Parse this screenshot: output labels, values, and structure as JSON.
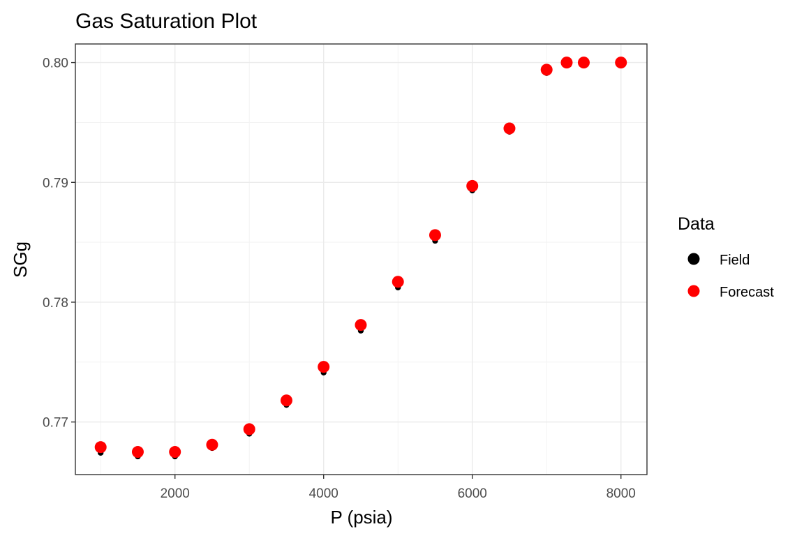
{
  "chart_data": {
    "type": "scatter",
    "title": "Gas Saturation Plot",
    "xlabel": "P (psia)",
    "ylabel": "SGg",
    "xlim": [
      660,
      8350
    ],
    "ylim": [
      0.76561,
      0.80155
    ],
    "x_ticks": [
      2000,
      4000,
      6000,
      8000
    ],
    "x_tick_labels": [
      "2000",
      "4000",
      "6000",
      "8000"
    ],
    "y_ticks": [
      0.77,
      0.78,
      0.79,
      0.8
    ],
    "y_tick_labels": [
      "0.77",
      "0.78",
      "0.79",
      "0.80"
    ],
    "grid": true,
    "legend": {
      "title": "Data",
      "position": "right"
    },
    "series": [
      {
        "name": "Forecast",
        "color": "#ff0000",
        "x": [
          1000,
          1500,
          2000,
          2500,
          3000,
          3500,
          4000,
          4500,
          5000,
          5500,
          6000,
          6500,
          7000,
          7270,
          7500,
          8000
        ],
        "y": [
          0.7679,
          0.7675,
          0.7675,
          0.7681,
          0.7694,
          0.7718,
          0.7746,
          0.7781,
          0.7817,
          0.7856,
          0.7897,
          0.7945,
          0.7994,
          0.8,
          0.8,
          0.8
        ]
      },
      {
        "name": "Field",
        "color": "#000000",
        "x": [
          1000,
          1500,
          2000,
          2500,
          3000,
          3500,
          4000,
          4500,
          5000,
          5500,
          6000,
          6500,
          7000,
          7250,
          7300,
          7500,
          8000
        ],
        "y": [
          0.7676,
          0.7673,
          0.7673,
          0.768,
          0.7692,
          0.7716,
          0.7743,
          0.7778,
          0.7814,
          0.7853,
          0.7895,
          0.7944,
          0.7993,
          0.8,
          0.8,
          0.8,
          0.8
        ]
      }
    ]
  }
}
